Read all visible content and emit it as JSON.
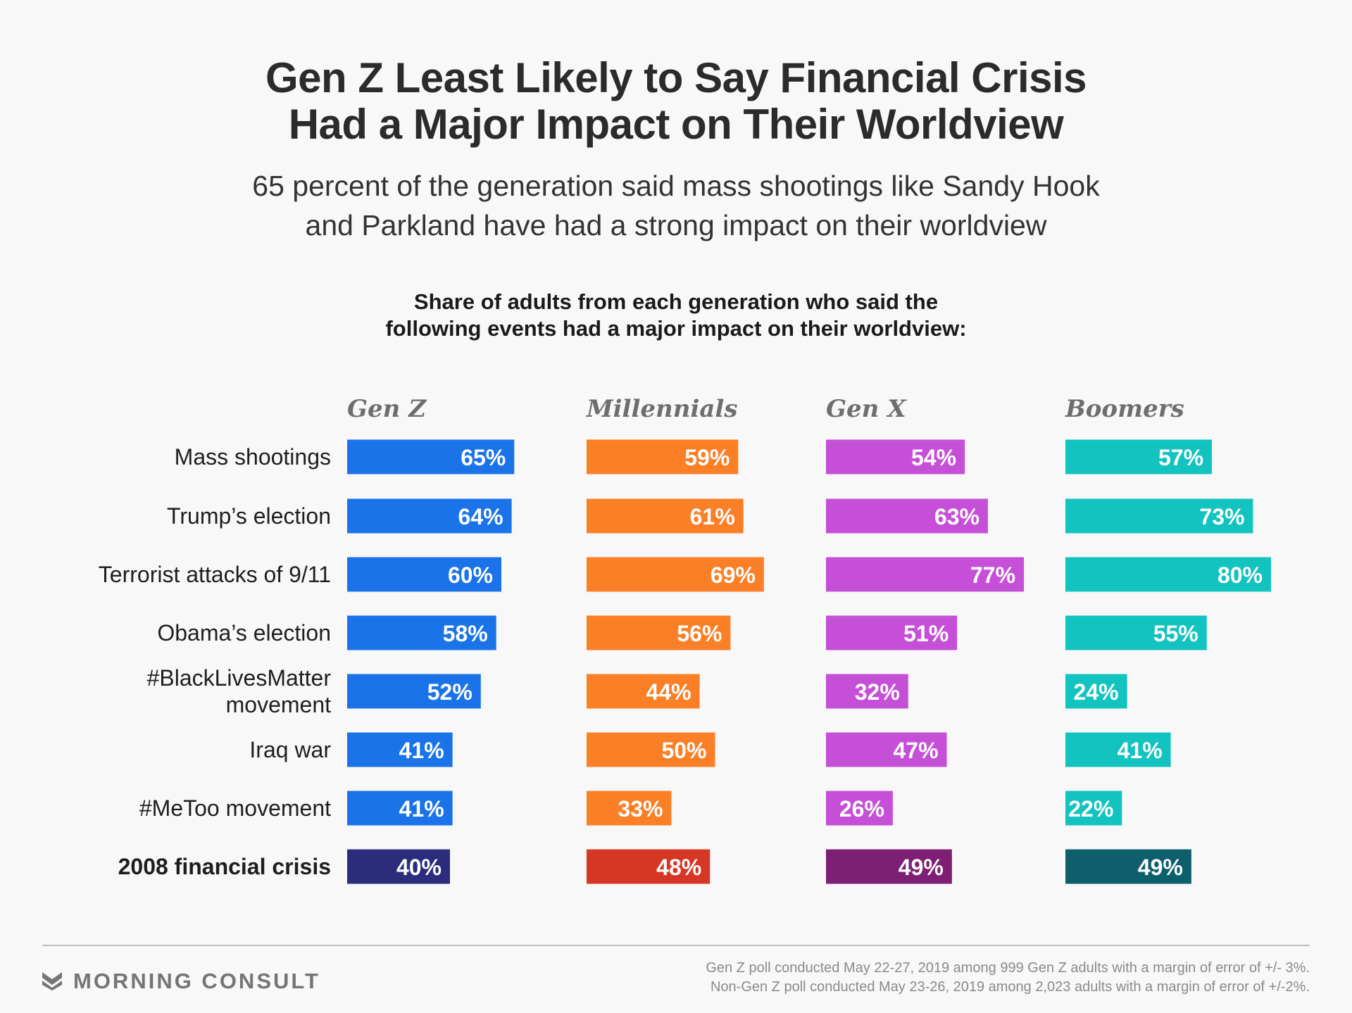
{
  "title": {
    "line1": "Gen Z Least Likely to Say Financial Crisis",
    "line2": "Had a Major Impact on Their Worldview"
  },
  "subtitle": {
    "line1": "65 percent of the generation said mass shootings like Sandy Hook",
    "line2": "and Parkland have had a strong impact on their worldview"
  },
  "chart_heading": {
    "line1": "Share of adults from each generation who said the",
    "line2": "following events had a major impact on their worldview:"
  },
  "chart_data": {
    "type": "bar",
    "orientation": "horizontal",
    "layout": "small-multiples",
    "value_suffix": "%",
    "categories": [
      [
        "Mass shootings"
      ],
      [
        "Trump’s election"
      ],
      [
        "Terrorist attacks of 9/11"
      ],
      [
        "Obama’s election"
      ],
      [
        "#BlackLivesMatter",
        "movement"
      ],
      [
        "Iraq war"
      ],
      [
        "#MeToo movement"
      ],
      [
        "2008 financial crisis"
      ]
    ],
    "highlight_category_index": 7,
    "series": [
      {
        "name": "Gen Z",
        "color": "#1a73e8",
        "highlight_color": "#2b2d7c",
        "values": [
          65,
          64,
          60,
          58,
          52,
          41,
          41,
          40
        ]
      },
      {
        "name": "Millennials",
        "color": "#fb7f26",
        "highlight_color": "#d63624",
        "values": [
          59,
          61,
          69,
          56,
          44,
          50,
          33,
          48
        ]
      },
      {
        "name": "Gen X",
        "color": "#c64fd8",
        "highlight_color": "#7d1f74",
        "values": [
          54,
          63,
          77,
          51,
          32,
          47,
          26,
          49
        ]
      },
      {
        "name": "Boomers",
        "color": "#13c3c0",
        "highlight_color": "#0e5f6c",
        "values": [
          57,
          73,
          80,
          55,
          24,
          41,
          22,
          49
        ]
      }
    ]
  },
  "footer": {
    "logo_text": "MORNING CONSULT",
    "note_line1": "Gen Z poll conducted May 22-27, 2019 among 999 Gen Z adults with a margin of error of +/- 3%.",
    "note_line2": "Non-Gen Z poll conducted May 23-26, 2019 among 2,023 adults with a margin of error of +/-2%."
  }
}
